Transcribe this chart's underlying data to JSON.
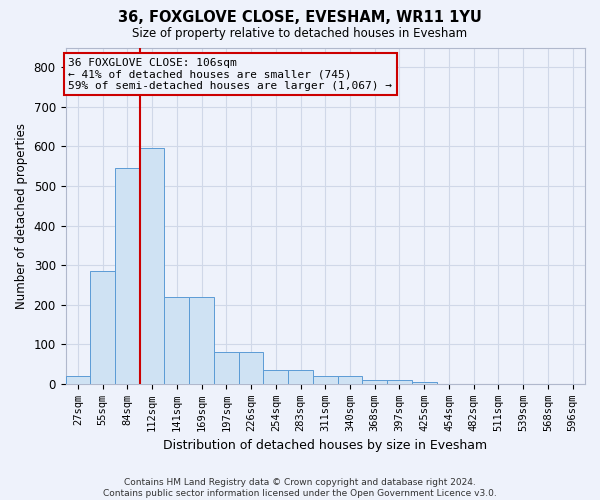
{
  "title": "36, FOXGLOVE CLOSE, EVESHAM, WR11 1YU",
  "subtitle": "Size of property relative to detached houses in Evesham",
  "xlabel": "Distribution of detached houses by size in Evesham",
  "ylabel": "Number of detached properties",
  "bar_labels": [
    "27sqm",
    "55sqm",
    "84sqm",
    "112sqm",
    "141sqm",
    "169sqm",
    "197sqm",
    "226sqm",
    "254sqm",
    "283sqm",
    "311sqm",
    "340sqm",
    "368sqm",
    "397sqm",
    "425sqm",
    "454sqm",
    "482sqm",
    "511sqm",
    "539sqm",
    "568sqm",
    "596sqm"
  ],
  "bar_values": [
    20,
    285,
    545,
    595,
    220,
    220,
    80,
    80,
    35,
    35,
    20,
    20,
    10,
    10,
    5,
    0,
    0,
    0,
    0,
    0,
    0
  ],
  "bar_color": "#cfe2f3",
  "bar_edge_color": "#5b9bd5",
  "grid_color": "#d0d8e8",
  "property_line_x": 2.5,
  "property_line_color": "#cc0000",
  "annotation_line1": "36 FOXGLOVE CLOSE: 106sqm",
  "annotation_line2": "← 41% of detached houses are smaller (745)",
  "annotation_line3": "59% of semi-detached houses are larger (1,067) →",
  "annotation_box_color": "#cc0000",
  "ylim": [
    0,
    850
  ],
  "yticks": [
    0,
    100,
    200,
    300,
    400,
    500,
    600,
    700,
    800
  ],
  "footnote_line1": "Contains HM Land Registry data © Crown copyright and database right 2024.",
  "footnote_line2": "Contains public sector information licensed under the Open Government Licence v3.0.",
  "bg_color": "#eef2fb"
}
